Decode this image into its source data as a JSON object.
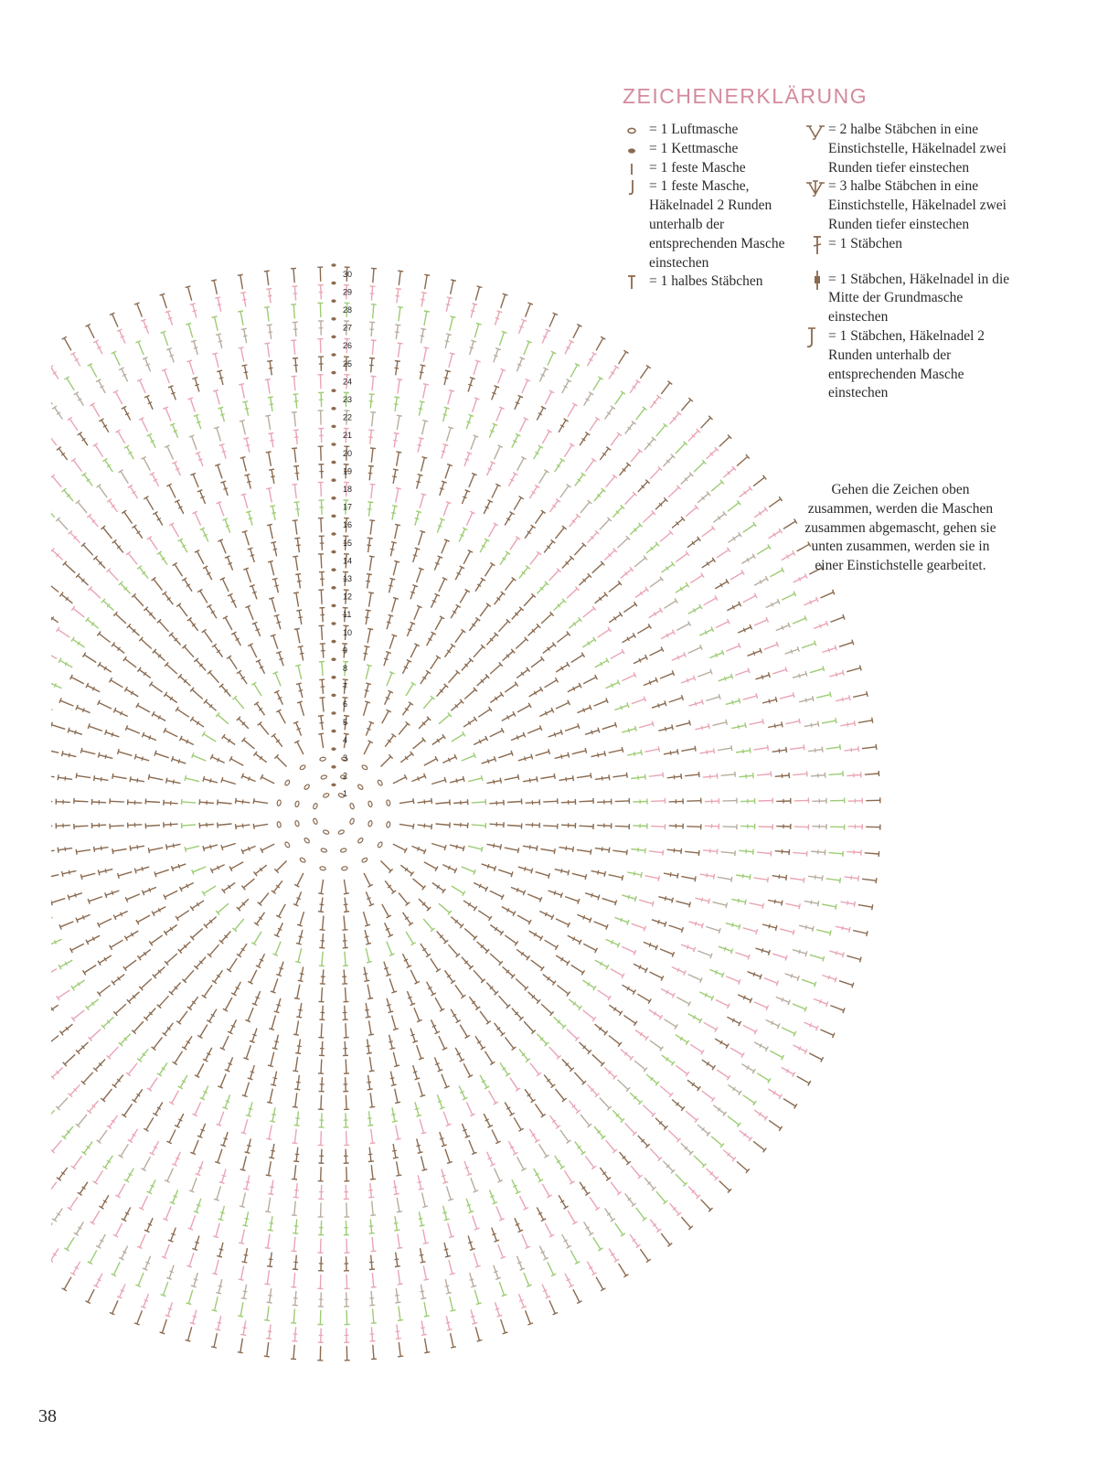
{
  "legend": {
    "title": "ZEICHENERKLÄRUNG",
    "entries_left": [
      {
        "symbol": "chain-stitch-icon",
        "text": "= 1 Luftmasche"
      },
      {
        "symbol": "slip-stitch-icon",
        "text": "= 1 Kettmasche"
      },
      {
        "symbol": "single-crochet-icon",
        "text": "= 1 feste Masche"
      },
      {
        "symbol": "single-crochet-spike-icon",
        "text": "= 1 feste Masche, Häkelnadel 2 Runden unterhalb der entsprechenden Masche einstechen"
      },
      {
        "symbol": "half-double-crochet-icon",
        "text": "= 1 halbes Stäbchen"
      }
    ],
    "entries_right": [
      {
        "symbol": "two-hdc-spike-icon",
        "text": "= 2 halbe Stäbchen in eine Einstichstelle, Häkelnadel zwei Runden tiefer einstechen"
      },
      {
        "symbol": "three-hdc-spike-icon",
        "text": "= 3 halbe Stäbchen in eine Einstichstelle, Häkelnadel zwei Runden tiefer einstechen"
      },
      {
        "symbol": "double-crochet-icon",
        "text": "= 1 Stäbchen"
      },
      {
        "symbol": "double-crochet-center-icon",
        "text": "= 1 Stäbchen, Häkelnadel in die Mitte der Grundmasche einstechen"
      },
      {
        "symbol": "double-crochet-spike-icon",
        "text": "= 1 Stäbchen, Häkelnadel 2 Runden unterhalb der entsprechenden Masche einstechen"
      }
    ],
    "note": "Gehen die Zeichen oben zusammen, werden die Maschen zusammen abgemascht, gehen sie unten zusammen, werden sie in einer Einstichstelle gearbeitet."
  },
  "diagram": {
    "round_labels": [
      "1",
      "2",
      "3",
      "4",
      "5",
      "6",
      "7",
      "8",
      "9",
      "10",
      "11",
      "12",
      "13",
      "14",
      "15",
      "16",
      "17",
      "18",
      "19",
      "20",
      "21",
      "22",
      "23",
      "24",
      "25",
      "26",
      "27",
      "28",
      "29",
      "30"
    ],
    "colors": {
      "brown": "#8a6a4f",
      "pink": "#e9a5b4",
      "green": "#9dcc74",
      "gray": "#b7ad9e"
    },
    "round_colors": [
      "brown",
      "brown",
      "brown",
      "brown",
      "brown",
      "brown",
      "brown",
      "green",
      "brown",
      "brown",
      "brown",
      "brown",
      "brown",
      "brown",
      "brown",
      "brown",
      "green",
      "pink",
      "brown",
      "brown",
      "pink",
      "gray",
      "green",
      "pink",
      "brown",
      "pink",
      "gray",
      "green",
      "pink",
      "brown"
    ]
  },
  "page_number": "38"
}
